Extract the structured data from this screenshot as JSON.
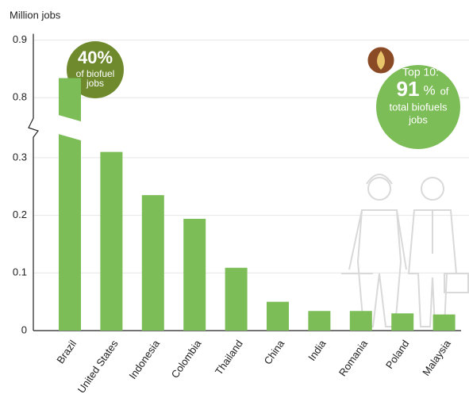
{
  "chart_data": {
    "type": "bar",
    "y_label": "Million jobs",
    "categories": [
      "Brazil",
      "United States",
      "Indonesia",
      "Colombia",
      "Thailand",
      "China",
      "India",
      "Romania",
      "Poland",
      "Malaysia"
    ],
    "values": [
      0.834,
      0.31,
      0.235,
      0.194,
      0.109,
      0.05,
      0.034,
      0.034,
      0.03,
      0.028
    ],
    "color": "#7cbd57",
    "ylim": [
      0,
      0.9
    ],
    "y_break": [
      0.33,
      0.77
    ],
    "yticks": [
      0,
      0.1,
      0.2,
      0.3,
      0.8,
      0.9
    ],
    "grid": true,
    "annotations": {
      "left": {
        "big": "40%",
        "line1": "of biofuel",
        "line2": "jobs"
      },
      "right": {
        "line1": "Top 10:",
        "big": "91",
        "unit": "%",
        "unit_after": "of",
        "line2": "total biofuels",
        "line3": "jobs"
      }
    }
  }
}
